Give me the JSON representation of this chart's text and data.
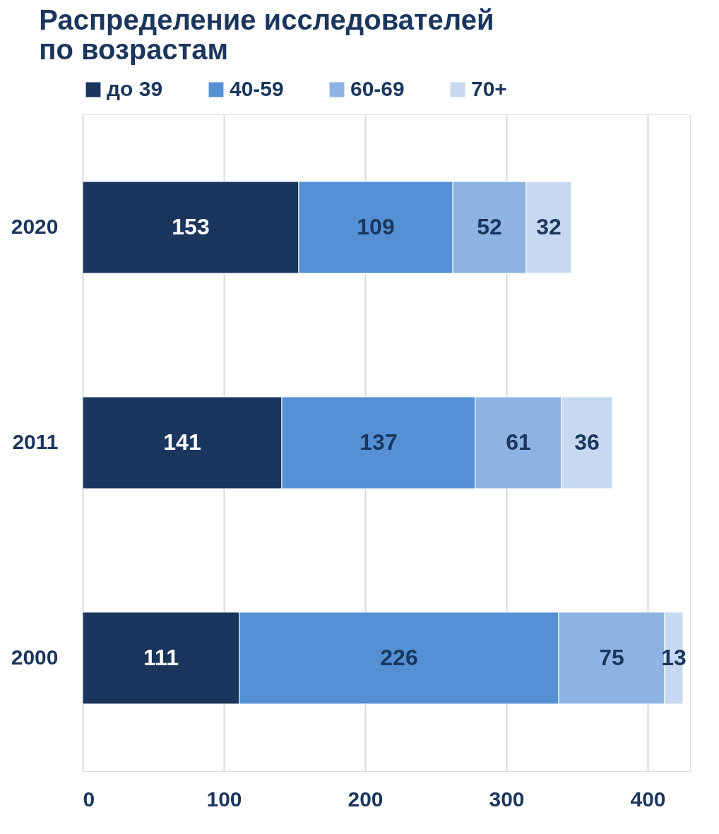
{
  "chart_data": {
    "type": "bar",
    "orientation": "horizontal",
    "stacked": true,
    "title": [
      "Распределение исследователей",
      "по возрастам"
    ],
    "categories": [
      "2020",
      "2011",
      "2000"
    ],
    "series": [
      {
        "name": "до 39",
        "color": "#1b365d",
        "values": [
          153,
          141,
          111
        ]
      },
      {
        "name": "40-59",
        "color": "#5590d5",
        "values": [
          109,
          137,
          226
        ]
      },
      {
        "name": "60-69",
        "color": "#8db3e2",
        "values": [
          52,
          61,
          75
        ]
      },
      {
        "name": "70+",
        "color": "#c6d9f0",
        "values": [
          32,
          36,
          13
        ]
      }
    ],
    "xlim": [
      0,
      430
    ],
    "xticks": [
      0,
      100,
      200,
      300,
      400
    ],
    "grid": "x",
    "legend": "top",
    "data_labels": true
  }
}
